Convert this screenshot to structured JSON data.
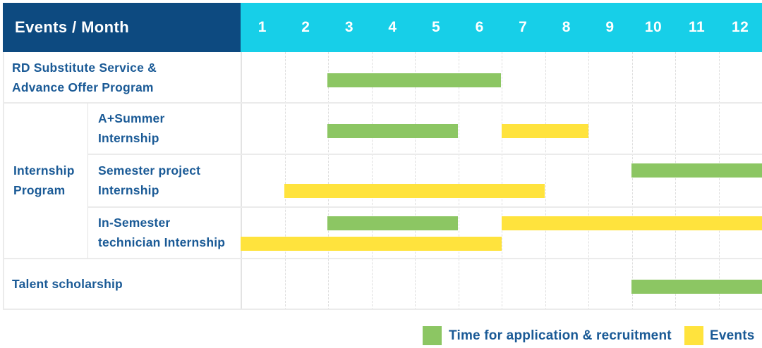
{
  "header": {
    "corner_label": "Events / Month"
  },
  "table": {
    "group_label": "Internship\nProgram",
    "row_labels": [
      "RD Substitute Service &\nAdvance Offer Program",
      "A+Summer\nInternship",
      "Semester project\nInternship",
      "In-Semester\ntechnician Internship",
      "Talent scholarship"
    ]
  },
  "legend": {
    "application_label": "Time for application & recruitment",
    "events_label": "Events"
  },
  "colors": {
    "header_navy": "#0d4a80",
    "header_cyan": "#17cfe8",
    "label_text_blue": "#1a5a96",
    "application": "#8cc663",
    "events": "#ffe33d",
    "grid_line": "#ebebeb"
  },
  "chart_data": {
    "type": "gantt",
    "title": "Events / Month",
    "x_axis": {
      "label": "Month",
      "ticks": [
        1,
        2,
        3,
        4,
        5,
        6,
        7,
        8,
        9,
        10,
        11,
        12
      ],
      "range": [
        1,
        12
      ]
    },
    "grid": "dashed-vertical-month-separators",
    "legend_position": "bottom-right",
    "legend": [
      {
        "series": "application",
        "label": "Time for application & recruitment",
        "color": "#8cc663"
      },
      {
        "series": "events",
        "label": "Events",
        "color": "#ffe33d"
      }
    ],
    "rows": [
      {
        "label": "RD Substitute Service & Advance Offer Program",
        "group": null,
        "bars": [
          {
            "series": "application",
            "start_month": 3,
            "end_month": 6,
            "lane": "mid"
          }
        ]
      },
      {
        "label": "A+Summer Internship",
        "group": "Internship Program",
        "bars": [
          {
            "series": "application",
            "start_month": 3,
            "end_month": 5,
            "lane": "mid"
          },
          {
            "series": "events",
            "start_month": 7,
            "end_month": 8,
            "lane": "mid"
          }
        ]
      },
      {
        "label": "Semester project Internship",
        "group": "Internship Program",
        "bars": [
          {
            "series": "application",
            "start_month": 10,
            "end_month": 12,
            "lane": "top"
          },
          {
            "series": "events",
            "start_month": 2,
            "end_month": 7,
            "lane": "bottom"
          }
        ]
      },
      {
        "label": "In-Semester technician Internship",
        "group": "Internship Program",
        "bars": [
          {
            "series": "application",
            "start_month": 3,
            "end_month": 5,
            "lane": "top"
          },
          {
            "series": "events",
            "start_month": 7,
            "end_month": 12,
            "lane": "top"
          },
          {
            "series": "events",
            "start_month": 1,
            "end_month": 6,
            "lane": "bottom"
          }
        ]
      },
      {
        "label": "Talent scholarship",
        "group": null,
        "bars": [
          {
            "series": "application",
            "start_month": 10,
            "end_month": 12,
            "lane": "mid"
          }
        ]
      }
    ]
  }
}
